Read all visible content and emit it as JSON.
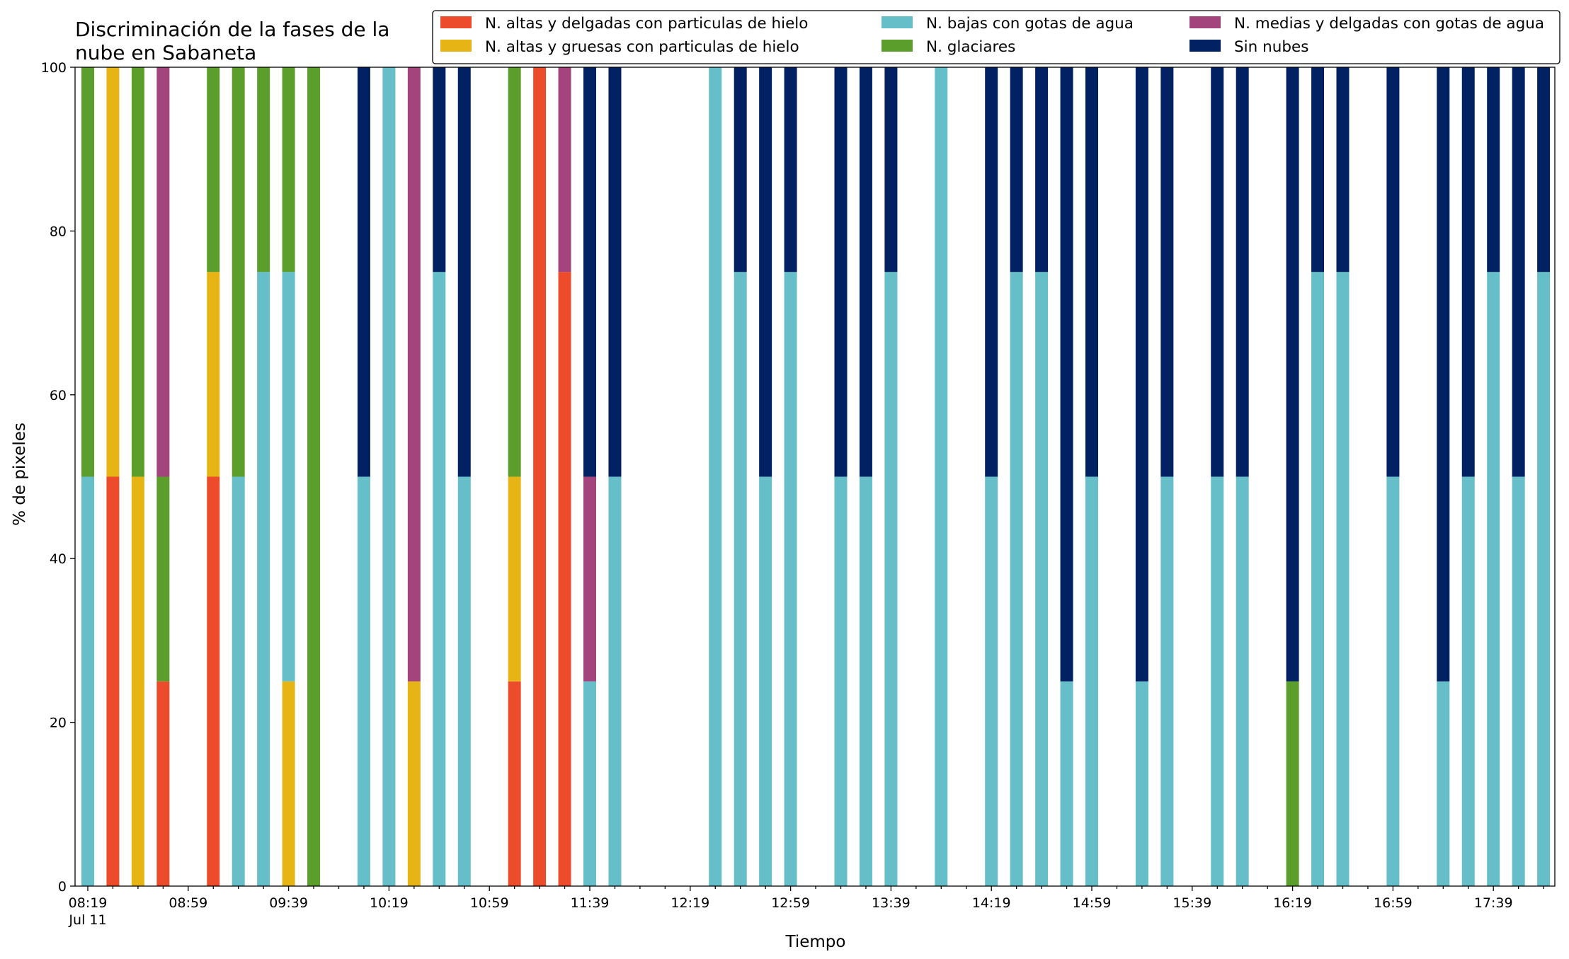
{
  "chart_data": {
    "type": "bar",
    "stacked": true,
    "title_lines": [
      "Discriminación de la fases de la",
      "nube en Sabaneta"
    ],
    "xlabel": "Tiempo",
    "ylabel": "% de pixeles",
    "ylim": [
      0,
      100
    ],
    "yticks": [
      "0",
      "20",
      "40",
      "60",
      "80",
      "100"
    ],
    "xtick_labels": [
      "08:19",
      "08:59",
      "09:39",
      "10:19",
      "10:59",
      "11:39",
      "12:19",
      "12:59",
      "13:39",
      "14:19",
      "14:59",
      "15:39",
      "16:19",
      "16:59",
      "17:39"
    ],
    "date_label": "Jul 11",
    "grid": false,
    "legend_position": "top-right",
    "colors": {
      "altas_delgadas": "#ec4c2c",
      "altas_gruesas": "#e6b414",
      "bajas_agua": "#66bec9",
      "glaciares": "#5c9e2c",
      "medias_delgadas": "#a4447c",
      "sin_nubes": "#022162"
    },
    "series": [
      {
        "key": "altas_delgadas",
        "name": "N. altas y delgadas con particulas de hielo"
      },
      {
        "key": "altas_gruesas",
        "name": "N. altas y gruesas con particulas de hielo"
      },
      {
        "key": "bajas_agua",
        "name": "N. bajas con gotas de agua"
      },
      {
        "key": "glaciares",
        "name": "N. glaciares"
      },
      {
        "key": "medias_delgadas",
        "name": "N. medias y delgadas con gotas de agua"
      },
      {
        "key": "sin_nubes",
        "name": "Sin nubes"
      }
    ],
    "bars": [
      {
        "slot": 0,
        "segments": [
          [
            "bajas_agua",
            50
          ],
          [
            "glaciares",
            50
          ]
        ]
      },
      {
        "slot": 1,
        "segments": [
          [
            "altas_delgadas",
            50
          ],
          [
            "altas_gruesas",
            50
          ]
        ]
      },
      {
        "slot": 2,
        "segments": [
          [
            "altas_gruesas",
            50
          ],
          [
            "glaciares",
            50
          ]
        ]
      },
      {
        "slot": 3,
        "segments": [
          [
            "altas_delgadas",
            25
          ],
          [
            "glaciares",
            25
          ],
          [
            "medias_delgadas",
            50
          ]
        ]
      },
      {
        "slot": 5,
        "segments": [
          [
            "altas_delgadas",
            50
          ],
          [
            "altas_gruesas",
            25
          ],
          [
            "glaciares",
            25
          ]
        ]
      },
      {
        "slot": 6,
        "segments": [
          [
            "bajas_agua",
            50
          ],
          [
            "glaciares",
            50
          ]
        ]
      },
      {
        "slot": 7,
        "segments": [
          [
            "bajas_agua",
            75
          ],
          [
            "glaciares",
            25
          ]
        ]
      },
      {
        "slot": 8,
        "segments": [
          [
            "altas_gruesas",
            25
          ],
          [
            "bajas_agua",
            50
          ],
          [
            "glaciares",
            25
          ]
        ]
      },
      {
        "slot": 9,
        "segments": [
          [
            "glaciares",
            100
          ]
        ]
      },
      {
        "slot": 11,
        "segments": [
          [
            "bajas_agua",
            50
          ],
          [
            "sin_nubes",
            50
          ]
        ]
      },
      {
        "slot": 12,
        "segments": [
          [
            "bajas_agua",
            100
          ]
        ]
      },
      {
        "slot": 13,
        "segments": [
          [
            "altas_gruesas",
            25
          ],
          [
            "medias_delgadas",
            75
          ]
        ]
      },
      {
        "slot": 14,
        "segments": [
          [
            "bajas_agua",
            75
          ],
          [
            "sin_nubes",
            25
          ]
        ]
      },
      {
        "slot": 15,
        "segments": [
          [
            "bajas_agua",
            50
          ],
          [
            "sin_nubes",
            50
          ]
        ]
      },
      {
        "slot": 17,
        "segments": [
          [
            "altas_delgadas",
            25
          ],
          [
            "altas_gruesas",
            25
          ],
          [
            "glaciares",
            50
          ]
        ]
      },
      {
        "slot": 18,
        "segments": [
          [
            "altas_delgadas",
            100
          ]
        ]
      },
      {
        "slot": 19,
        "segments": [
          [
            "altas_delgadas",
            75
          ],
          [
            "medias_delgadas",
            25
          ]
        ]
      },
      {
        "slot": 20,
        "segments": [
          [
            "bajas_agua",
            25
          ],
          [
            "medias_delgadas",
            25
          ],
          [
            "sin_nubes",
            50
          ]
        ]
      },
      {
        "slot": 21,
        "segments": [
          [
            "bajas_agua",
            50
          ],
          [
            "sin_nubes",
            50
          ]
        ]
      },
      {
        "slot": 25,
        "segments": [
          [
            "bajas_agua",
            100
          ]
        ]
      },
      {
        "slot": 26,
        "segments": [
          [
            "bajas_agua",
            75
          ],
          [
            "sin_nubes",
            25
          ]
        ]
      },
      {
        "slot": 27,
        "segments": [
          [
            "bajas_agua",
            50
          ],
          [
            "sin_nubes",
            50
          ]
        ]
      },
      {
        "slot": 28,
        "segments": [
          [
            "bajas_agua",
            75
          ],
          [
            "sin_nubes",
            25
          ]
        ]
      },
      {
        "slot": 30,
        "segments": [
          [
            "bajas_agua",
            50
          ],
          [
            "sin_nubes",
            50
          ]
        ]
      },
      {
        "slot": 31,
        "segments": [
          [
            "bajas_agua",
            50
          ],
          [
            "sin_nubes",
            50
          ]
        ]
      },
      {
        "slot": 32,
        "segments": [
          [
            "bajas_agua",
            75
          ],
          [
            "sin_nubes",
            25
          ]
        ]
      },
      {
        "slot": 34,
        "segments": [
          [
            "bajas_agua",
            100
          ]
        ]
      },
      {
        "slot": 36,
        "segments": [
          [
            "bajas_agua",
            50
          ],
          [
            "sin_nubes",
            50
          ]
        ]
      },
      {
        "slot": 37,
        "segments": [
          [
            "bajas_agua",
            75
          ],
          [
            "sin_nubes",
            25
          ]
        ]
      },
      {
        "slot": 38,
        "segments": [
          [
            "bajas_agua",
            75
          ],
          [
            "sin_nubes",
            25
          ]
        ]
      },
      {
        "slot": 39,
        "segments": [
          [
            "bajas_agua",
            25
          ],
          [
            "sin_nubes",
            75
          ]
        ]
      },
      {
        "slot": 40,
        "segments": [
          [
            "bajas_agua",
            50
          ],
          [
            "sin_nubes",
            50
          ]
        ]
      },
      {
        "slot": 42,
        "segments": [
          [
            "bajas_agua",
            25
          ],
          [
            "sin_nubes",
            75
          ]
        ]
      },
      {
        "slot": 43,
        "segments": [
          [
            "bajas_agua",
            50
          ],
          [
            "sin_nubes",
            50
          ]
        ]
      },
      {
        "slot": 45,
        "segments": [
          [
            "bajas_agua",
            50
          ],
          [
            "sin_nubes",
            50
          ]
        ]
      },
      {
        "slot": 46,
        "segments": [
          [
            "bajas_agua",
            50
          ],
          [
            "sin_nubes",
            50
          ]
        ]
      },
      {
        "slot": 48,
        "segments": [
          [
            "glaciares",
            25
          ],
          [
            "sin_nubes",
            75
          ]
        ]
      },
      {
        "slot": 49,
        "segments": [
          [
            "bajas_agua",
            75
          ],
          [
            "sin_nubes",
            25
          ]
        ]
      },
      {
        "slot": 50,
        "segments": [
          [
            "bajas_agua",
            75
          ],
          [
            "sin_nubes",
            25
          ]
        ]
      },
      {
        "slot": 52,
        "segments": [
          [
            "bajas_agua",
            50
          ],
          [
            "sin_nubes",
            50
          ]
        ]
      },
      {
        "slot": 54,
        "segments": [
          [
            "bajas_agua",
            25
          ],
          [
            "sin_nubes",
            75
          ]
        ]
      },
      {
        "slot": 55,
        "segments": [
          [
            "bajas_agua",
            50
          ],
          [
            "sin_nubes",
            50
          ]
        ]
      },
      {
        "slot": 56,
        "segments": [
          [
            "bajas_agua",
            75
          ],
          [
            "sin_nubes",
            25
          ]
        ]
      },
      {
        "slot": 57,
        "segments": [
          [
            "bajas_agua",
            50
          ],
          [
            "sin_nubes",
            50
          ]
        ]
      },
      {
        "slot": 58,
        "segments": [
          [
            "bajas_agua",
            75
          ],
          [
            "sin_nubes",
            25
          ]
        ]
      }
    ]
  }
}
